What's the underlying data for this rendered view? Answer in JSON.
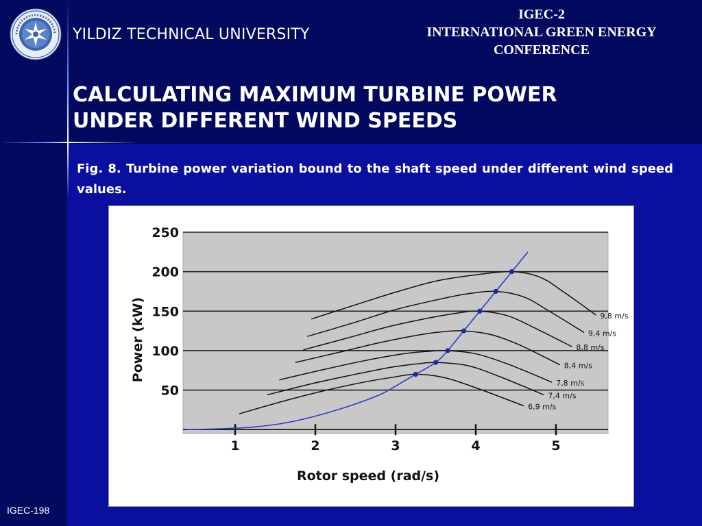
{
  "header": {
    "university": "YILDIZ TECHNICAL UNIVERSITY",
    "conference_lines": [
      "IGEC-2",
      "INTERNATIONAL GREEN ENERGY",
      "CONFERENCE"
    ]
  },
  "slide": {
    "title_lines": [
      "CALCULATING MAXIMUM TURBINE POWER",
      "UNDER DIFFERENT WIND SPEEDS"
    ],
    "caption": "Fig. 8. Turbine power variation bound to the shaft speed under different wind speed values."
  },
  "footer": {
    "label": "IGEC-198"
  },
  "colors": {
    "background": "#0a0f9e",
    "header_band": "#02095e",
    "plot_area": "#c8c8c8",
    "mpp_curve": "#2e3bbf",
    "marker": "#1a2a9a"
  },
  "chart_data": {
    "type": "line",
    "title": "",
    "xlabel": "Rotor speed (rad/s)",
    "ylabel": "Power (kW)",
    "xlim": [
      0.35,
      5.65
    ],
    "ylim": [
      -5,
      250
    ],
    "xticks": [
      1,
      2,
      3,
      4,
      5
    ],
    "yticks": [
      50,
      100,
      150,
      200,
      250
    ],
    "grid": true,
    "series": [
      {
        "name": "9,8 m/s",
        "peak_x": 4.45,
        "peak_y": 200,
        "x": [
          1.95,
          2.5,
          3.0,
          3.5,
          4.0,
          4.45,
          4.8,
          5.1,
          5.5
        ],
        "y": [
          140,
          158,
          174,
          188,
          196,
          200,
          193,
          174,
          145
        ]
      },
      {
        "name": "9,4 m/s",
        "peak_x": 4.25,
        "peak_y": 175,
        "x": [
          1.9,
          2.5,
          3.0,
          3.5,
          3.9,
          4.25,
          4.6,
          4.9,
          5.35
        ],
        "y": [
          118,
          136,
          152,
          164,
          172,
          175,
          168,
          151,
          123
        ]
      },
      {
        "name": "8,8 m/s",
        "peak_x": 4.05,
        "peak_y": 150,
        "x": [
          1.85,
          2.4,
          2.9,
          3.4,
          3.8,
          4.05,
          4.4,
          4.75,
          5.2
        ],
        "y": [
          101,
          116,
          130,
          141,
          148,
          150,
          144,
          128,
          105
        ]
      },
      {
        "name": "8,4 m/s",
        "peak_x": 3.85,
        "peak_y": 125,
        "x": [
          1.75,
          2.3,
          2.8,
          3.3,
          3.6,
          3.85,
          4.2,
          4.55,
          5.05
        ],
        "y": [
          85,
          98,
          110,
          120,
          124,
          125,
          120,
          107,
          82
        ]
      },
      {
        "name": "7,8 m/s",
        "peak_x": 3.65,
        "peak_y": 100,
        "x": [
          1.55,
          2.1,
          2.6,
          3.1,
          3.4,
          3.65,
          4.0,
          4.4,
          4.95
        ],
        "y": [
          63,
          76,
          87,
          96,
          99,
          100,
          96,
          83,
          60
        ]
      },
      {
        "name": "7,4 m/s",
        "peak_x": 3.5,
        "peak_y": 85,
        "x": [
          1.4,
          1.95,
          2.45,
          2.95,
          3.25,
          3.5,
          3.9,
          4.3,
          4.85
        ],
        "y": [
          44,
          58,
          69,
          79,
          83,
          85,
          81,
          67,
          44
        ]
      },
      {
        "name": "6,9 m/s",
        "peak_x": 3.25,
        "peak_y": 70,
        "x": [
          1.05,
          1.6,
          2.1,
          2.6,
          2.95,
          3.25,
          3.6,
          4.0,
          4.6
        ],
        "y": [
          20,
          36,
          49,
          60,
          66,
          70,
          66,
          53,
          30
        ]
      }
    ],
    "mpp_curve": {
      "x": [
        0.4,
        0.8,
        1.2,
        1.6,
        2.0,
        2.4,
        2.8,
        3.0,
        3.25,
        3.5,
        3.65,
        3.85,
        4.05,
        4.25,
        4.45,
        4.65
      ],
      "y": [
        0,
        1,
        3,
        8,
        17,
        29,
        44,
        55,
        70,
        85,
        100,
        125,
        150,
        175,
        200,
        225
      ]
    }
  }
}
